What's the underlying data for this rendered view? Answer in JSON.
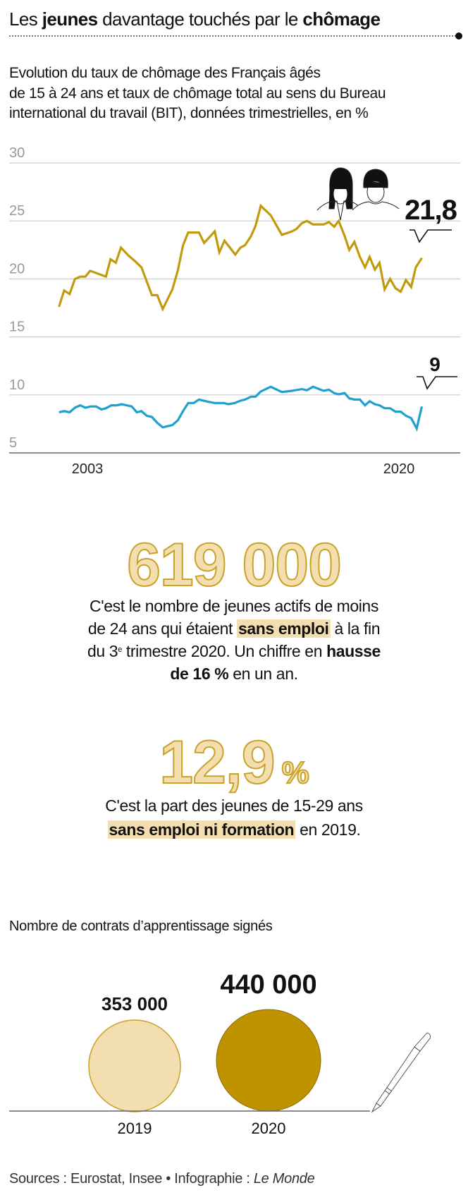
{
  "header": {
    "title_parts": [
      "Les ",
      "jeunes",
      " davantage touchés par le ",
      "chômage"
    ],
    "subtitle_lines": [
      "Evolution du taux de chômage des Français âgés",
      "de 15 à 24 ans et taux de chômage total au sens du Bureau",
      "international du travail (BIT), données trimestrielles, en %"
    ]
  },
  "chart_data": {
    "type": "line",
    "title": "Evolution du taux de chômage des Français âgés de 15 à 24 ans et taux de chômage total au sens du Bureau international du travail (BIT), données trimestrielles, en %",
    "ylim": [
      5,
      30
    ],
    "yticks": [
      "30",
      "25",
      "20",
      "15",
      "10",
      "5"
    ],
    "xticks": [
      {
        "label": "2003",
        "year": 2003
      },
      {
        "label": "2020",
        "year": 2020
      }
    ],
    "grid": true,
    "series": [
      {
        "name": "15-24 ans",
        "color": "#c29b0c",
        "end_label": "21,8",
        "points": [
          [
            2001.45,
            17.6
          ],
          [
            2001.73,
            19.0
          ],
          [
            2002.03,
            18.7
          ],
          [
            2002.32,
            20.0
          ],
          [
            2002.61,
            20.2
          ],
          [
            2002.89,
            20.2
          ],
          [
            2003.15,
            20.7
          ],
          [
            2004.01,
            20.2
          ],
          [
            2004.26,
            21.7
          ],
          [
            2004.55,
            21.4
          ],
          [
            2004.83,
            22.7
          ],
          [
            2005.25,
            22.0
          ],
          [
            2005.62,
            21.5
          ],
          [
            2005.95,
            21.0
          ],
          [
            2006.52,
            18.6
          ],
          [
            2006.81,
            18.6
          ],
          [
            2007.11,
            17.4
          ],
          [
            2007.64,
            19.1
          ],
          [
            2007.93,
            20.7
          ],
          [
            2008.22,
            22.9
          ],
          [
            2008.5,
            24.0
          ],
          [
            2009.09,
            24.0
          ],
          [
            2009.37,
            23.1
          ],
          [
            2009.95,
            24.1
          ],
          [
            2010.2,
            22.3
          ],
          [
            2010.48,
            23.3
          ],
          [
            2011.07,
            22.1
          ],
          [
            2011.35,
            22.7
          ],
          [
            2011.6,
            22.9
          ],
          [
            2011.93,
            23.7
          ],
          [
            2012.18,
            24.6
          ],
          [
            2012.46,
            26.3
          ],
          [
            2013.0,
            25.5
          ],
          [
            2013.61,
            23.8
          ],
          [
            2014.16,
            24.1
          ],
          [
            2014.4,
            24.3
          ],
          [
            2014.7,
            24.8
          ],
          [
            2014.98,
            25.0
          ],
          [
            2015.31,
            24.7
          ],
          [
            2015.89,
            24.7
          ],
          [
            2016.18,
            24.9
          ],
          [
            2016.47,
            24.5
          ],
          [
            2016.71,
            25.0
          ],
          [
            2017.04,
            23.7
          ],
          [
            2017.29,
            22.5
          ],
          [
            2017.57,
            23.2
          ],
          [
            2017.87,
            21.9
          ],
          [
            2018.15,
            21.0
          ],
          [
            2018.4,
            21.9
          ],
          [
            2018.69,
            20.8
          ],
          [
            2018.94,
            21.4
          ],
          [
            2019.22,
            19.1
          ],
          [
            2019.52,
            20.0
          ],
          [
            2019.81,
            19.2
          ],
          [
            2020.1,
            18.9
          ],
          [
            2020.38,
            19.9
          ],
          [
            2020.67,
            19.3
          ],
          [
            2020.92,
            21.0
          ],
          [
            2021.25,
            21.8
          ]
        ]
      },
      {
        "name": "Total",
        "color": "#1fa0cf",
        "end_label": "9",
        "points": [
          [
            2001.45,
            8.5
          ],
          [
            2001.73,
            8.6
          ],
          [
            2002.03,
            8.5
          ],
          [
            2002.32,
            8.9
          ],
          [
            2002.61,
            9.1
          ],
          [
            2002.89,
            8.9
          ],
          [
            2003.18,
            9.0
          ],
          [
            2003.48,
            9.0
          ],
          [
            2003.76,
            8.75
          ],
          [
            2004.01,
            8.85
          ],
          [
            2004.31,
            9.1
          ],
          [
            2004.59,
            9.1
          ],
          [
            2004.87,
            9.2
          ],
          [
            2005.42,
            9.0
          ],
          [
            2005.7,
            8.5
          ],
          [
            2005.95,
            8.6
          ],
          [
            2006.24,
            8.2
          ],
          [
            2006.52,
            8.1
          ],
          [
            2006.81,
            7.6
          ],
          [
            2007.11,
            7.2
          ],
          [
            2007.64,
            7.4
          ],
          [
            2007.93,
            7.8
          ],
          [
            2008.22,
            8.6
          ],
          [
            2008.5,
            9.3
          ],
          [
            2008.8,
            9.3
          ],
          [
            2009.09,
            9.6
          ],
          [
            2009.62,
            9.4
          ],
          [
            2009.95,
            9.3
          ],
          [
            2010.45,
            9.3
          ],
          [
            2010.7,
            9.2
          ],
          [
            2011.03,
            9.3
          ],
          [
            2011.35,
            9.5
          ],
          [
            2011.6,
            9.6
          ],
          [
            2011.93,
            9.85
          ],
          [
            2012.18,
            9.85
          ],
          [
            2012.46,
            10.3
          ],
          [
            2013.0,
            10.7
          ],
          [
            2013.61,
            10.25
          ],
          [
            2014.16,
            10.35
          ],
          [
            2014.7,
            10.5
          ],
          [
            2014.98,
            10.4
          ],
          [
            2015.31,
            10.7
          ],
          [
            2015.89,
            10.35
          ],
          [
            2016.18,
            10.45
          ],
          [
            2016.47,
            10.15
          ],
          [
            2016.71,
            10.05
          ],
          [
            2017.04,
            10.15
          ],
          [
            2017.29,
            9.7
          ],
          [
            2017.57,
            9.6
          ],
          [
            2017.87,
            9.6
          ],
          [
            2018.15,
            9.1
          ],
          [
            2018.4,
            9.45
          ],
          [
            2018.69,
            9.2
          ],
          [
            2018.94,
            9.1
          ],
          [
            2019.22,
            8.85
          ],
          [
            2019.52,
            8.85
          ],
          [
            2019.81,
            8.55
          ],
          [
            2020.1,
            8.55
          ],
          [
            2020.38,
            8.2
          ],
          [
            2020.67,
            8.0
          ],
          [
            2020.97,
            7.1
          ],
          [
            2021.25,
            9.0
          ]
        ]
      }
    ]
  },
  "stat1": {
    "value": "619 000",
    "l1": "C'est le nombre de jeunes actifs de moins",
    "l2a": "de 24 ans qui étaient ",
    "l2b": "sans emploi",
    "l2c": " à la fin",
    "l3a": "du 3",
    "l3sup": "e",
    "l3b": " trimestre 2020. Un chiffre en ",
    "l3c": "hausse",
    "l4a": "de 16 %",
    "l4b": " en un an."
  },
  "stat2": {
    "value": "12,9",
    "unit": "%",
    "l1": "C'est la part des jeunes de 15-29 ans",
    "l2a": "sans emploi ni formation",
    "l2b": " en 2019."
  },
  "contracts": {
    "title": "Nombre de contrats d’apprentissage signés",
    "items": [
      {
        "year": "2019",
        "label": "353 000",
        "value": 353000,
        "color": "#f3deb0"
      },
      {
        "year": "2020",
        "label": "440 000",
        "value": 440000,
        "color": "#bf9300"
      }
    ]
  },
  "footer": {
    "sources": "Sources : Eurostat, Insee",
    "separator": "•",
    "credit": "Infographie : ",
    "credit_brand": "Le Monde"
  }
}
